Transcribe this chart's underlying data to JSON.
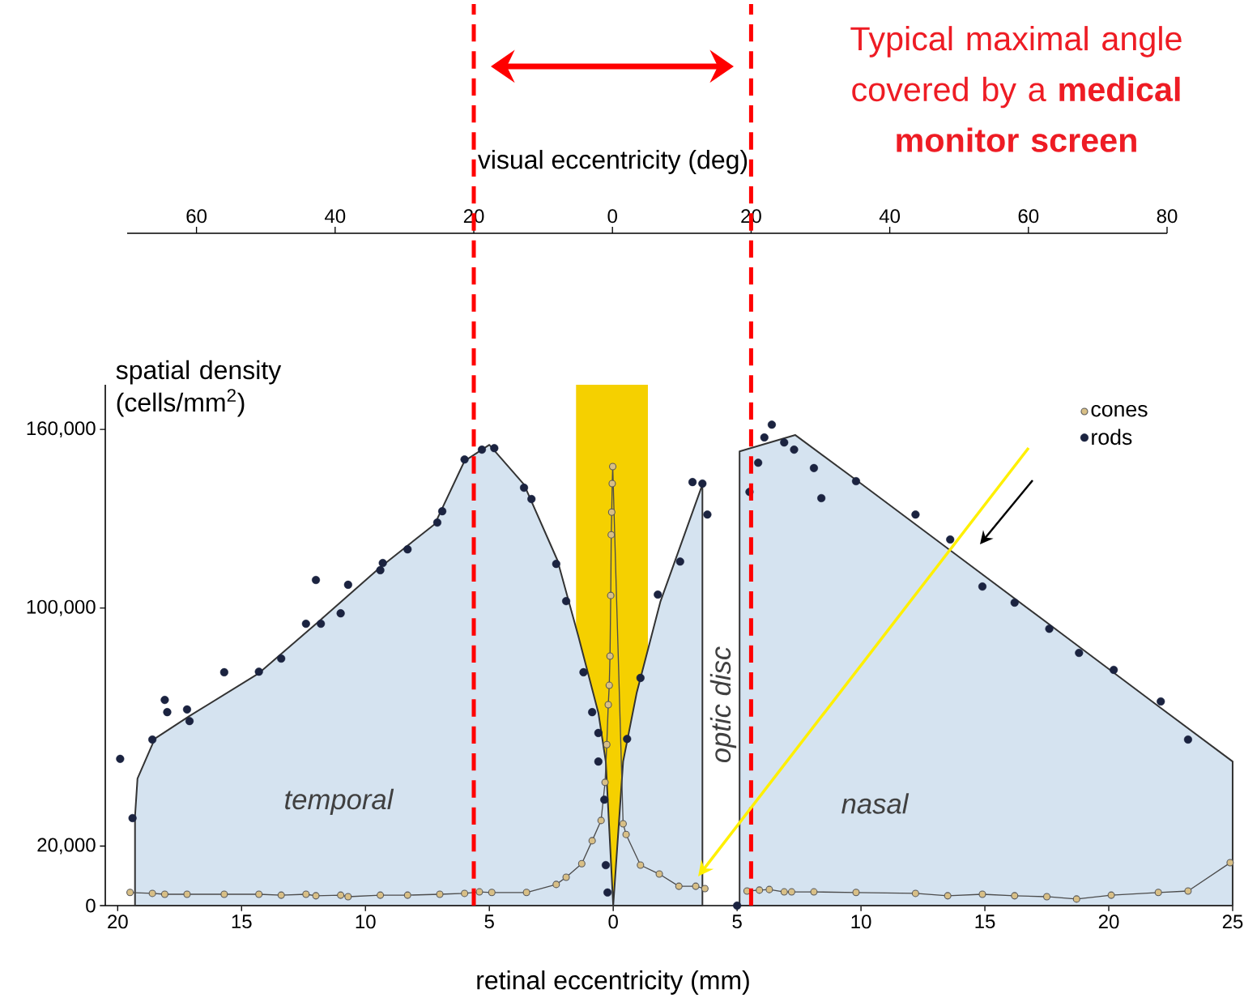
{
  "chart_data": {
    "type": "line",
    "xlabel": "retinal eccentricity (mm)",
    "ylabel": "spatial density (cells/mm$^{2}$)",
    "x2label": "visual eccentricity (deg)",
    "xlim": [
      -20.5,
      25
    ],
    "xticks": [
      {
        "value": -20,
        "label": "20"
      },
      {
        "value": -15,
        "label": "15"
      },
      {
        "value": -10,
        "label": "10"
      },
      {
        "value": -5,
        "label": "5"
      },
      0,
      5,
      10,
      15,
      20,
      25
    ],
    "x2lim": [
      -70,
      80
    ],
    "x2ticks": [
      {
        "value": -60,
        "label": "60"
      },
      {
        "value": -40,
        "label": "40"
      },
      {
        "value": -20,
        "label": "20"
      },
      0,
      20,
      40,
      60,
      80
    ],
    "ylim": [
      0,
      175000
    ],
    "yticks": [
      0,
      {
        "value": 20000,
        "label": "20,000"
      },
      {
        "value": 100000,
        "label": "100,000"
      },
      {
        "value": 160000,
        "label": "160,000"
      }
    ],
    "legend": "top right",
    "series": [
      {
        "type": "area",
        "color": "#d5e3f0",
        "x": [
          -19.3,
          -19.2,
          -18.5,
          -17.1,
          -14.3,
          -11.8,
          -9.4,
          -7.2,
          -6.0,
          -5.0,
          -3.6,
          -2.25,
          -1.4,
          -0.6,
          -0.3,
          0,
          0.4,
          0.95,
          1.9,
          3.6,
          4.4,
          5.1,
          7.35,
          10,
          14,
          18,
          22,
          25
        ],
        "values": [
          30000,
          42700,
          56100,
          63700,
          78100,
          96100,
          113700,
          128200,
          149400,
          154800,
          141500,
          116000,
          90300,
          64800,
          48400,
          0,
          48400,
          71600,
          102000,
          141500,
          null,
          152600,
          158100,
          141800,
          116900,
          92000,
          67000,
          48400
        ]
      },
      {
        "name": "cones",
        "color": "#d8bf86",
        "marker": "circle",
        "x": [
          -19.5,
          -18.6,
          -18.1,
          -17.2,
          -15.7,
          -14.3,
          -13.4,
          -12.4,
          -12.0,
          -11.0,
          -10.7,
          -9.4,
          -8.3,
          -7.0,
          -6.0,
          -5.4,
          -4.9,
          -3.5,
          -2.3,
          -1.9,
          -1.27,
          -0.85,
          -0.49,
          -0.33,
          -0.26,
          -0.2,
          -0.16,
          -0.13,
          -0.1,
          -0.08,
          -0.06,
          -0.04,
          -0.02,
          0.4,
          0.52,
          1.1,
          1.86,
          2.65,
          3.33,
          3.7,
          4.5,
          5.4,
          5.9,
          6.3,
          6.9,
          7.2,
          8.1,
          9.8,
          12.2,
          13.5,
          14.9,
          16.2,
          17.5,
          18.7,
          20.1,
          22.0,
          23.2,
          24.9
        ],
        "values": [
          4400,
          4100,
          3800,
          3800,
          3800,
          3800,
          3500,
          3800,
          3300,
          3500,
          3000,
          3500,
          3500,
          3800,
          4100,
          4600,
          4400,
          4400,
          7100,
          9500,
          14100,
          21800,
          28600,
          41400,
          54100,
          67500,
          74000,
          83800,
          104200,
          124600,
          132200,
          141800,
          147500,
          27500,
          23900,
          13600,
          10600,
          6500,
          6500,
          5700,
          null,
          4900,
          5200,
          5400,
          4600,
          4600,
          4600,
          4400,
          4100,
          3300,
          3800,
          3300,
          3000,
          2200,
          3500,
          4400,
          4900,
          14400
        ]
      },
      {
        "name": "rods",
        "type": "scatter",
        "color": "#1b2340",
        "marker": "circle",
        "x": [
          -19.9,
          -19.4,
          -18.6,
          -18.1,
          -18.0,
          -17.2,
          -17.1,
          -15.7,
          -14.3,
          -13.4,
          -12.4,
          -12.0,
          -11.8,
          -11.0,
          -10.7,
          -9.4,
          -9.3,
          -8.3,
          -7.1,
          -6.9,
          -6.0,
          -5.3,
          -4.8,
          -3.6,
          -3.3,
          -2.3,
          -1.9,
          -1.2,
          -0.85,
          -0.6,
          -0.6,
          -0.36,
          -0.3,
          -0.23,
          0.56,
          1.1,
          1.8,
          2.7,
          3.2,
          3.6,
          3.8,
          5.0,
          5.5,
          5.85,
          6.1,
          6.4,
          6.9,
          7.3,
          8.1,
          8.4,
          9.8,
          12.2,
          13.6,
          14.9,
          16.2,
          17.6,
          18.8,
          20.2,
          22.1,
          23.2
        ],
        "values": [
          49300,
          29400,
          55800,
          69100,
          65000,
          65900,
          62000,
          78400,
          78600,
          83000,
          94700,
          109400,
          94700,
          98200,
          107800,
          112700,
          115100,
          119700,
          128700,
          132500,
          149900,
          153200,
          153700,
          140400,
          136600,
          114800,
          102300,
          78400,
          65000,
          58000,
          48400,
          35600,
          13600,
          4400,
          56000,
          76500,
          104500,
          115600,
          142300,
          141800,
          131400,
          0,
          139000,
          148800,
          157300,
          161600,
          155600,
          153200,
          147000,
          136900,
          142600,
          131400,
          123000,
          107200,
          101800,
          93000,
          84900,
          79200,
          68600,
          55800
        ]
      }
    ],
    "bands": [
      {
        "axis": "x",
        "from": -1.5,
        "to": 1.4,
        "color": "#f5d000"
      }
    ],
    "ref_lines": [
      {
        "axis": "x2",
        "value": -20,
        "color": "#ff0000",
        "line_style": "dashed"
      },
      {
        "axis": "x2",
        "value": 20,
        "color": "#ff0000",
        "line_style": "dashed"
      }
    ],
    "annotations": [
      "Typical maximal angle covered by a **medical monitor screen**",
      "temporal",
      "nasal",
      "optic disc"
    ]
  }
}
